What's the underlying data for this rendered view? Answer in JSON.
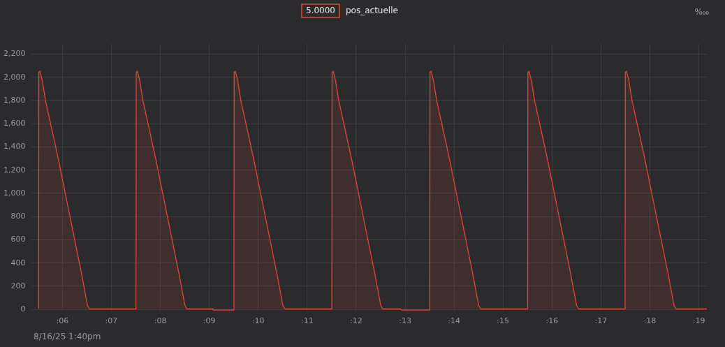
{
  "chart_data": {
    "type": "area",
    "annotations": [
      "5.0000",
      "8/16/25 1:40pm",
      "‱"
    ],
    "legend": "top",
    "grid": true,
    "xlim": [
      5.36,
      19.17
    ],
    "xticks": [
      {
        "value": 6,
        "label": ":06"
      },
      {
        "value": 7,
        "label": ":07"
      },
      {
        "value": 8,
        "label": ":08"
      },
      {
        "value": 9,
        "label": ":09"
      },
      {
        "value": 10,
        "label": ":10"
      },
      {
        "value": 11,
        "label": ":11"
      },
      {
        "value": 12,
        "label": ":12"
      },
      {
        "value": 13,
        "label": ":13"
      },
      {
        "value": 14,
        "label": ":14"
      },
      {
        "value": 15,
        "label": ":15"
      },
      {
        "value": 16,
        "label": ":16"
      },
      {
        "value": 17,
        "label": ":17"
      },
      {
        "value": 18,
        "label": ":18"
      },
      {
        "value": 19,
        "label": ":19"
      }
    ],
    "ylim": [
      -15,
      2290
    ],
    "yticks": [
      0,
      {
        "value": 200,
        "label": "200"
      },
      {
        "value": 400,
        "label": "400"
      },
      {
        "value": 600,
        "label": "600"
      },
      {
        "value": 800,
        "label": "800"
      },
      {
        "value": 1000,
        "label": "1,000"
      },
      {
        "value": 1200,
        "label": "1,200"
      },
      {
        "value": 1400,
        "label": "1,400"
      },
      {
        "value": 1600,
        "label": "1,600"
      },
      {
        "value": 1800,
        "label": "1,800"
      },
      {
        "value": 2000,
        "label": "2,000"
      },
      {
        "value": 2200,
        "label": "2,200"
      }
    ],
    "series": [
      {
        "name": "pos_actuelle",
        "color": "#e0463a",
        "x": [
          5.52,
          5.525,
          5.55,
          5.6,
          5.66,
          5.92,
          6.16,
          6.4,
          6.48,
          6.52,
          6.56,
          7.505,
          7.51,
          7.515,
          7.54,
          7.59,
          7.65,
          7.91,
          8.15,
          8.39,
          8.47,
          8.51,
          8.55,
          9.08,
          9.09,
          9.51,
          9.515,
          9.54,
          9.59,
          9.65,
          9.91,
          10.15,
          10.39,
          10.47,
          10.51,
          10.55,
          11.505,
          11.51,
          11.515,
          11.54,
          11.59,
          11.65,
          11.91,
          12.15,
          12.39,
          12.47,
          12.51,
          12.55,
          12.92,
          12.93,
          13.51,
          13.515,
          13.54,
          13.59,
          13.65,
          13.91,
          14.15,
          14.39,
          14.47,
          14.51,
          14.55,
          15.505,
          15.51,
          15.515,
          15.54,
          15.59,
          15.65,
          15.91,
          16.15,
          16.39,
          16.47,
          16.51,
          16.55,
          17.495,
          17.5,
          17.505,
          17.53,
          17.58,
          17.64,
          17.9,
          18.14,
          18.38,
          18.46,
          18.5,
          18.54,
          19.17
        ],
        "values": [
          0,
          2040,
          2050,
          1960,
          1800,
          1300,
          800,
          300,
          120,
          30,
          0,
          0,
          0,
          2040,
          2050,
          1960,
          1800,
          1300,
          800,
          300,
          120,
          30,
          0,
          0,
          -10,
          -10,
          2040,
          2050,
          1960,
          1800,
          1300,
          800,
          300,
          120,
          30,
          0,
          0,
          0,
          2040,
          2050,
          1960,
          1800,
          1300,
          800,
          300,
          120,
          30,
          0,
          0,
          -10,
          -10,
          2040,
          2050,
          1960,
          1800,
          1300,
          800,
          300,
          120,
          30,
          0,
          0,
          0,
          2040,
          2050,
          1960,
          1800,
          1300,
          800,
          300,
          120,
          30,
          0,
          0,
          0,
          2040,
          2050,
          1960,
          1800,
          1300,
          800,
          300,
          120,
          30,
          0,
          0
        ]
      }
    ]
  }
}
